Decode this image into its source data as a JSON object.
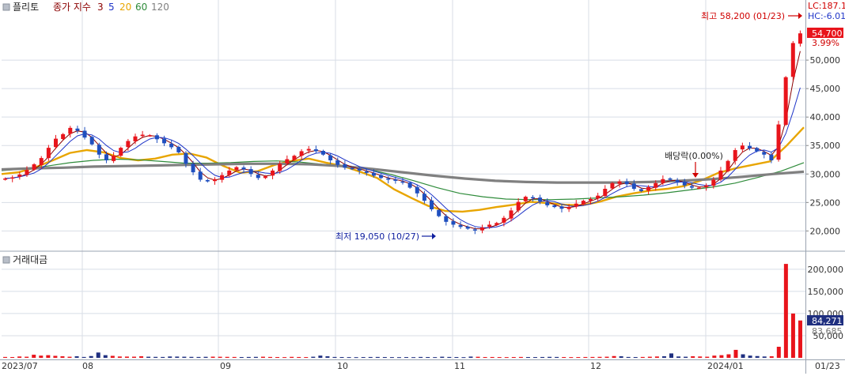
{
  "price_panel": {
    "title": "플리토",
    "legend_prefix": "종가 지수",
    "ma_periods": [
      "3",
      "5",
      "20",
      "60",
      "120"
    ],
    "ma_colors": [
      "#8b0000",
      "#1f35c8",
      "#e8a500",
      "#2e8b3a",
      "#808080"
    ],
    "y_ticks": [
      "50,000",
      "45,000",
      "40,000",
      "35,000",
      "30,000",
      "25,000",
      "20,000"
    ],
    "right_labels": {
      "lc": "LC:187.1",
      "hc": "HC:-6.01",
      "last_price": "54,700",
      "change_pct": "3.99%"
    },
    "annotations": {
      "high": "최고 58,200 (01/23)",
      "low": "최저 19,050 (10/27)",
      "dividend": "배당락(0.00%)"
    }
  },
  "volume_panel": {
    "title": "거래대금",
    "y_ticks": [
      "200,000",
      "150,000",
      "100,000",
      "50,000"
    ],
    "last_value": "84,271",
    "sub_value": "83,685"
  },
  "x_axis": {
    "labels": [
      "2023/07",
      "08",
      "09",
      "10",
      "11",
      "12",
      "2024/01",
      "01/23"
    ]
  },
  "colors": {
    "up": "#e8141b",
    "down": "#1f4fbf",
    "grid": "#d8dde6",
    "axis": "#888888"
  },
  "chart_data": {
    "type": "candlestick",
    "title": "플리토",
    "price_range": [
      17000,
      60000
    ],
    "volume_range": [
      0,
      230000
    ],
    "high": {
      "value": 58200,
      "date": "01/23"
    },
    "low": {
      "value": 19050,
      "date": "10/27"
    },
    "last_close": 54700,
    "change_pct": 3.99,
    "volume_last": 84271,
    "price_series": [
      29200,
      29400,
      29900,
      30700,
      31700,
      32800,
      34600,
      36200,
      37000,
      38100,
      37600,
      36400,
      35200,
      33400,
      32400,
      33200,
      34600,
      35800,
      36600,
      36900,
      36800,
      36100,
      35400,
      34700,
      33800,
      31800,
      30300,
      29000,
      28700,
      29100,
      29800,
      30600,
      31200,
      30800,
      30000,
      29300,
      29600,
      30600,
      31800,
      32600,
      33200,
      34000,
      34400,
      34000,
      33400,
      32400,
      31600,
      31100,
      30900,
      30600,
      30200,
      29700,
      29300,
      29000,
      28800,
      28500,
      27600,
      26600,
      25300,
      23800,
      22600,
      21600,
      21100,
      20700,
      20400,
      20100,
      20600,
      21100,
      21400,
      22300,
      23600,
      25100,
      26000,
      25800,
      25200,
      24500,
      24200,
      23900,
      24200,
      24800,
      25300,
      25600,
      26200,
      27400,
      28400,
      28700,
      28200,
      27400,
      27000,
      27700,
      28400,
      29100,
      29000,
      28600,
      28000,
      27600,
      27600,
      28000,
      29000,
      30600,
      32300,
      34200,
      35000,
      34500,
      34000,
      33400,
      32400,
      38700,
      47000,
      53000,
      54700
    ],
    "ma_series": [
      {
        "name": "20",
        "values": [
          30000,
          30300,
          31200,
          32400,
          33700,
          34200,
          33800,
          32800,
          32400,
          32700,
          33400,
          33600,
          32900,
          31400,
          30200,
          30500,
          31600,
          32300,
          32700,
          32000,
          31400,
          30400,
          29300,
          27300,
          25800,
          24400,
          23500,
          23400,
          23700,
          24200,
          24600,
          25100,
          24900,
          24600,
          24500,
          25100,
          26000,
          26600,
          27100,
          27400,
          27900,
          28900,
          30200,
          31000,
          31600,
          32200,
          35000,
          38200
        ]
      },
      {
        "name": "60",
        "values": [
          30600,
          30900,
          31400,
          32000,
          32400,
          32600,
          32500,
          32200,
          31900,
          31900,
          32000,
          32200,
          32300,
          32100,
          31700,
          31400,
          30800,
          29900,
          28800,
          27600,
          26600,
          26000,
          25600,
          25500,
          25500,
          25600,
          25800,
          26000,
          26300,
          26700,
          27200,
          27700,
          28400,
          29400,
          30500,
          32000
        ]
      },
      {
        "name": "120",
        "values": [
          30800,
          31000,
          31100,
          31300,
          31400,
          31500,
          31600,
          31700,
          31800,
          31800,
          31700,
          31400,
          30900,
          30300,
          29700,
          29200,
          28800,
          28600,
          28500,
          28500,
          28500,
          28600,
          28800,
          29100,
          29500,
          30000,
          30400
        ]
      }
    ],
    "volume_values": [
      2000,
      1800,
      3000,
      2500,
      7000,
      5000,
      6000,
      4500,
      3500,
      2500,
      3500,
      2000,
      4000,
      12000,
      6000,
      4500,
      3000,
      2800,
      2600,
      3500,
      2500,
      2200,
      2000,
      3000,
      2800,
      2500,
      2200,
      2000,
      2300,
      2600,
      2400,
      2200,
      2000,
      1800,
      2000,
      2200,
      2500,
      2000,
      1800,
      1600,
      2200,
      1900,
      1700,
      2500,
      5000,
      3500,
      2000,
      1800,
      1600,
      1500,
      1700,
      1900,
      2000,
      1800,
      1600,
      1500,
      1700,
      1500,
      2000,
      1800,
      1600,
      2500,
      2000,
      1800,
      1500,
      2800,
      2400,
      1800,
      1900,
      1700,
      1600,
      1800,
      2000,
      1800,
      1700,
      1900,
      2200,
      2000,
      1800,
      1600,
      1700,
      1900,
      2000,
      2200,
      2500,
      4000,
      3500,
      2000,
      1800,
      2000,
      2500,
      3000,
      3500,
      10000,
      3000,
      2500,
      3500,
      3000,
      2500,
      5000,
      6000,
      8000,
      18000,
      8000,
      5000,
      4000,
      3000,
      3500,
      25000,
      212000,
      100000,
      84271
    ]
  }
}
